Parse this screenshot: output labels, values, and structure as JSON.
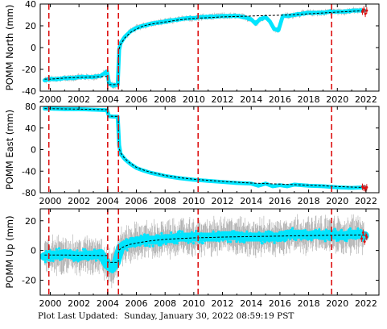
{
  "footer": {
    "label": "Plot Last Updated:",
    "timestamp": "Sunday, January 30, 2022 08:59:19 PST"
  },
  "colors": {
    "data": "#00e5ff",
    "error_bar": "#aaaaaa",
    "model": "#000000",
    "event_line": "#dd1111",
    "recent_points": "#dd1111"
  },
  "chart_data": [
    {
      "type": "scatter",
      "ylabel": "POMM North (mm)",
      "xlim": [
        1999.3,
        2022.9
      ],
      "ylim": [
        -40,
        40
      ],
      "y_ticks": [
        -40,
        -20,
        0,
        20,
        40
      ],
      "x_ticks": [
        2000,
        2002,
        2004,
        2006,
        2008,
        2010,
        2012,
        2014,
        2016,
        2018,
        2020,
        2022
      ],
      "x_tick_labels": [
        "2000",
        "2002",
        "2004",
        "2006",
        "2008",
        "2010",
        "2012",
        "2014",
        "2016",
        "2018",
        "2020",
        "2022"
      ],
      "event_lines": [
        1999.9,
        2004.0,
        2004.75,
        2010.3,
        2019.6
      ],
      "series": [
        {
          "kind": "observed",
          "x": [
            1999.6,
            2000.0,
            2000.5,
            2001.0,
            2001.5,
            2002.0,
            2002.5,
            2003.0,
            2003.5,
            2003.95,
            2004.1,
            2004.4,
            2004.7,
            2004.8,
            2004.9,
            2005.2,
            2005.6,
            2006.0,
            2006.5,
            2007.0,
            2007.5,
            2008.0,
            2008.5,
            2009.0,
            2009.5,
            2010.0,
            2010.5,
            2011.0,
            2011.5,
            2012.0,
            2012.5,
            2013.0,
            2013.5,
            2014.0,
            2014.3,
            2014.6,
            2015.0,
            2015.3,
            2015.6,
            2015.9,
            2016.2,
            2016.6,
            2017.0,
            2017.5,
            2018.0,
            2018.5,
            2019.0,
            2019.5,
            2020.0,
            2020.5,
            2021.0,
            2021.5,
            2021.9
          ],
          "y": [
            -30,
            -29,
            -29,
            -28,
            -28,
            -27,
            -27,
            -27,
            -26,
            -22,
            -33,
            -35,
            -34,
            -2,
            4,
            10,
            15,
            18,
            20,
            22,
            23,
            24,
            25,
            26,
            27,
            27,
            28,
            28,
            28.5,
            29,
            29,
            29,
            28,
            26,
            22,
            26,
            28,
            24,
            17,
            16,
            29,
            29,
            30,
            31,
            32,
            32,
            32,
            33,
            33,
            33,
            34,
            34,
            34
          ]
        },
        {
          "kind": "model",
          "x": [
            1999.6,
            2000.0,
            2001.0,
            2002.0,
            2003.0,
            2003.99,
            2004.01,
            2004.5,
            2004.74,
            2004.76,
            2004.9,
            2005.2,
            2005.6,
            2006.0,
            2006.5,
            2007.0,
            2008.0,
            2009.0,
            2010.0,
            2011.0,
            2012.0,
            2013.0,
            2014.0,
            2015.0,
            2016.0,
            2017.0,
            2018.0,
            2019.0,
            2020.0,
            2021.0,
            2022.0
          ],
          "y": [
            -29,
            -29,
            -28,
            -27.5,
            -27,
            -26.5,
            -34,
            -34,
            -33.5,
            -3,
            3,
            9,
            14,
            17,
            20,
            21.5,
            23.5,
            25.5,
            26.8,
            27.5,
            28.2,
            28.6,
            29,
            29.4,
            29.7,
            30.2,
            31,
            31.8,
            32.6,
            33.3,
            34
          ]
        },
        {
          "kind": "recent",
          "x": [
            2021.75,
            2021.85,
            2021.95,
            2022.05
          ],
          "y": [
            33,
            35,
            31,
            34
          ]
        }
      ]
    },
    {
      "type": "scatter",
      "ylabel": "POMM East (mm)",
      "xlim": [
        1999.3,
        2022.9
      ],
      "ylim": [
        -80,
        80
      ],
      "y_ticks": [
        -80,
        -40,
        0,
        40,
        80
      ],
      "x_ticks": [
        2000,
        2002,
        2004,
        2006,
        2008,
        2010,
        2012,
        2014,
        2016,
        2018,
        2020,
        2022
      ],
      "x_tick_labels": [
        "2000",
        "2002",
        "2004",
        "2006",
        "2008",
        "2010",
        "2012",
        "2014",
        "2016",
        "2018",
        "2020",
        "2022"
      ],
      "event_lines": [
        1999.9,
        2004.0,
        2004.75,
        2010.3,
        2019.6
      ],
      "series": [
        {
          "kind": "observed",
          "x": [
            1999.6,
            2000.0,
            2001.0,
            2002.0,
            2003.0,
            2003.95,
            2004.1,
            2004.4,
            2004.7,
            2004.8,
            2004.9,
            2005.2,
            2005.6,
            2006.0,
            2006.5,
            2007.0,
            2007.5,
            2008.0,
            2009.0,
            2010.0,
            2011.0,
            2012.0,
            2013.0,
            2014.0,
            2014.5,
            2015.0,
            2015.5,
            2016.0,
            2016.5,
            2017.0,
            2018.0,
            2019.0,
            2020.0,
            2021.0,
            2021.9
          ],
          "y": [
            76,
            76,
            75,
            75,
            74,
            73,
            62,
            61,
            61,
            8,
            -8,
            -18,
            -27,
            -34,
            -39,
            -43,
            -46,
            -49,
            -53,
            -56,
            -58,
            -60,
            -62,
            -63,
            -67,
            -63,
            -68,
            -66,
            -68,
            -65,
            -67,
            -68,
            -70,
            -71,
            -70
          ]
        },
        {
          "kind": "model",
          "x": [
            1999.6,
            2001.0,
            2003.0,
            2003.99,
            2004.01,
            2004.74,
            2004.76,
            2004.9,
            2005.2,
            2005.6,
            2006.0,
            2006.5,
            2007.0,
            2008.0,
            2009.0,
            2010.0,
            2011.0,
            2012.0,
            2013.0,
            2014.0,
            2015.0,
            2016.0,
            2017.0,
            2018.0,
            2019.0,
            2020.0,
            2021.0,
            2022.0
          ],
          "y": [
            76,
            75.5,
            74.5,
            74,
            62,
            61.5,
            6,
            -6,
            -17,
            -26,
            -33,
            -38,
            -42,
            -48,
            -52,
            -55,
            -57,
            -59,
            -60.5,
            -62,
            -63,
            -64,
            -65,
            -66,
            -67,
            -68.5,
            -69.5,
            -70.5
          ]
        },
        {
          "kind": "recent",
          "x": [
            2021.75,
            2021.85,
            2021.95,
            2022.05
          ],
          "y": [
            -69,
            -71,
            -72,
            -70
          ]
        }
      ]
    },
    {
      "type": "scatter",
      "ylabel": "POMM Up (mm)",
      "xlim": [
        1999.3,
        2022.9
      ],
      "ylim": [
        -30,
        28
      ],
      "y_ticks": [
        -20,
        0,
        20
      ],
      "x_ticks": [
        2000,
        2002,
        2004,
        2006,
        2008,
        2010,
        2012,
        2014,
        2016,
        2018,
        2020,
        2022
      ],
      "x_tick_labels": [
        "2000",
        "2002",
        "2004",
        "2006",
        "2008",
        "2010",
        "2012",
        "2014",
        "2016",
        "2018",
        "2020",
        "2022"
      ],
      "event_lines": [
        1999.9,
        2004.0,
        2004.75,
        2010.3,
        2019.6
      ],
      "series": [
        {
          "kind": "observed",
          "x": [
            1999.6,
            2000.0,
            2000.5,
            2001.0,
            2001.5,
            2002.0,
            2002.5,
            2003.0,
            2003.5,
            2004.0,
            2004.3,
            2004.6,
            2004.9,
            2005.2,
            2005.6,
            2006.0,
            2006.5,
            2007.0,
            2007.5,
            2008.0,
            2008.5,
            2009.0,
            2009.5,
            2010.0,
            2010.5,
            2011.0,
            2011.5,
            2012.0,
            2012.5,
            2013.0,
            2013.5,
            2014.0,
            2014.5,
            2015.0,
            2015.5,
            2016.0,
            2016.5,
            2017.0,
            2017.5,
            2018.0,
            2018.5,
            2019.0,
            2019.5,
            2020.0,
            2020.5,
            2021.0,
            2021.5,
            2021.9
          ],
          "y": [
            -4,
            -3,
            -3,
            -2,
            -3,
            -4,
            -3,
            -3,
            -2,
            -10,
            -12,
            -8,
            2,
            4,
            5,
            6,
            7,
            7,
            7,
            8,
            8,
            9,
            9,
            9,
            9,
            9,
            9,
            10,
            10,
            10,
            9,
            9,
            9,
            9,
            9,
            9,
            11,
            11,
            11,
            10,
            11,
            10,
            11,
            10,
            10,
            11,
            11,
            10
          ]
        },
        {
          "kind": "model",
          "x": [
            1999.6,
            2000.0,
            2001.0,
            2002.0,
            2003.0,
            2003.99,
            2004.01,
            2004.74,
            2004.76,
            2005.0,
            2005.5,
            2006.0,
            2007.0,
            2008.0,
            2009.0,
            2010.0,
            2011.0,
            2012.0,
            2013.0,
            2014.0,
            2015.0,
            2016.0,
            2017.0,
            2018.0,
            2019.0,
            2020.0,
            2021.0,
            2022.0
          ],
          "y": [
            -3,
            -3,
            -3,
            -3.2,
            -3.3,
            -3.4,
            -8,
            -8,
            0,
            2,
            4,
            5,
            6.5,
            7.5,
            8,
            8.5,
            8.7,
            9,
            9.2,
            9.4,
            9.5,
            9.7,
            9.9,
            10,
            10.2,
            10.3,
            10.4,
            10.5
          ]
        },
        {
          "kind": "recent",
          "x": [
            2021.7,
            2021.8,
            2021.9,
            2022.0,
            2022.05
          ],
          "y": [
            8,
            12,
            6,
            10,
            9
          ]
        }
      ]
    }
  ]
}
